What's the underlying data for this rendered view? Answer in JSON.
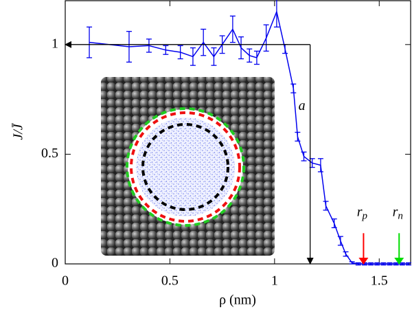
{
  "chart_data": {
    "type": "line",
    "x_label": "ρ (nm)",
    "y_label": "J/J̄",
    "xlim": [
      0,
      1.65
    ],
    "ylim": [
      0,
      1.2
    ],
    "xticks": [
      0,
      0.5,
      1,
      1.5
    ],
    "yticks": [
      0,
      0.5,
      1
    ],
    "series": [
      {
        "color": "#0000ee",
        "x": [
          0.115,
          0.305,
          0.4,
          0.48,
          0.55,
          0.61,
          0.66,
          0.71,
          0.75,
          0.8,
          0.84,
          0.88,
          0.915,
          0.96,
          1.01,
          1.05,
          1.09,
          1.11,
          1.14,
          1.18,
          1.22,
          1.245,
          1.285,
          1.315,
          1.34,
          1.37,
          1.4,
          1.43,
          1.46,
          1.49,
          1.52,
          1.55,
          1.58,
          1.61,
          1.64
        ],
        "values": [
          1.01,
          0.99,
          0.995,
          0.975,
          0.965,
          0.945,
          1.01,
          0.945,
          1.0,
          1.07,
          0.985,
          0.95,
          0.94,
          1.03,
          1.15,
          0.98,
          0.8,
          0.58,
          0.49,
          0.46,
          0.45,
          0.265,
          0.185,
          0.105,
          0.045,
          0.005,
          0,
          0,
          0,
          0,
          0,
          0,
          0,
          0,
          0
        ],
        "errors": [
          0.07,
          0.07,
          0.03,
          0.02,
          0.03,
          0.04,
          0.06,
          0.04,
          0.04,
          0.06,
          0.05,
          0.03,
          0.03,
          0.06,
          0.07,
          0.02,
          0.02,
          0.02,
          0.02,
          0.02,
          0.03,
          0.02,
          0.02,
          0.02,
          0.01,
          0.005,
          0.005,
          0.005,
          0.005,
          0.005,
          0.005,
          0.005,
          0.005,
          0.005,
          0.005
        ]
      }
    ],
    "annotations": [
      {
        "text": "a",
        "x": 1.17,
        "y_from": 1,
        "y_to": 0,
        "x_to": 0,
        "color": "#000000"
      },
      {
        "text": "r",
        "sub": "p",
        "x": 1.425,
        "y_from": 0.14,
        "y_to": 0,
        "color": "#ff0000"
      },
      {
        "text": "r",
        "sub": "n",
        "x": 1.595,
        "y_from": 0.14,
        "y_to": 0,
        "color": "#00dd00"
      }
    ]
  }
}
